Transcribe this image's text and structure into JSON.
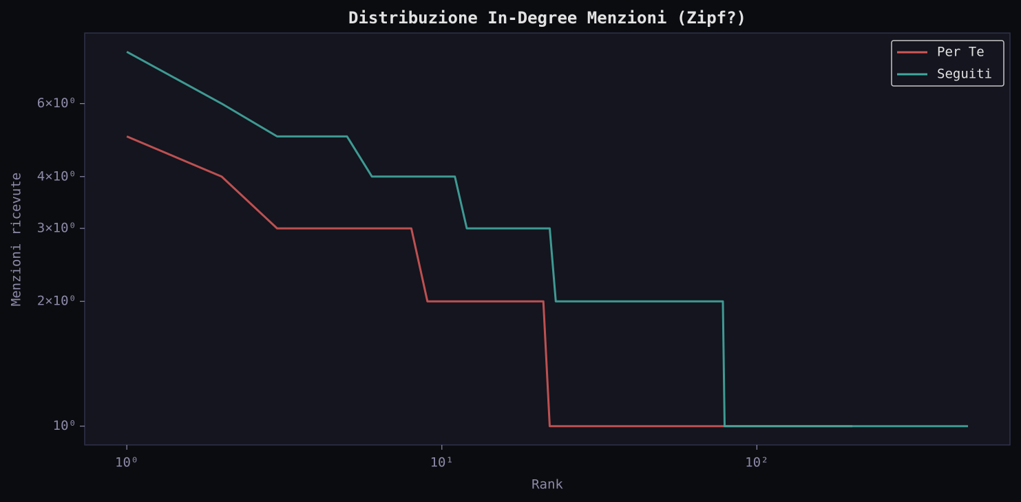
{
  "chart_data": {
    "type": "line",
    "title": "Distribuzione In-Degree Menzioni (Zipf?)",
    "xlabel": "Rank",
    "ylabel": "Menzioni ricevute",
    "xscale": "log",
    "yscale": "log",
    "grid": false,
    "legend": "upper right",
    "xlim": [
      0.735,
      636
    ],
    "ylim": [
      0.901,
      8.88
    ],
    "xticks": [
      {
        "value": 1,
        "label": "10⁰"
      },
      {
        "value": 10,
        "label": "10¹"
      },
      {
        "value": 100,
        "label": "10²"
      }
    ],
    "yticks": [
      {
        "value": 1,
        "label": "10⁰"
      },
      {
        "value": 2,
        "label": "2×10⁰"
      },
      {
        "value": 3,
        "label": "3×10⁰"
      },
      {
        "value": 4,
        "label": "4×10⁰"
      },
      {
        "value": 6,
        "label": "6×10⁰"
      }
    ],
    "series": [
      {
        "name": "Per Te",
        "color": "#d05757",
        "x": [
          1,
          2,
          3,
          8,
          9,
          21,
          22,
          201
        ],
        "values": [
          5,
          4,
          3,
          3,
          2,
          2,
          1,
          1
        ]
      },
      {
        "name": "Seguiti",
        "color": "#42a8a0",
        "x": [
          1,
          2,
          3,
          5,
          6,
          11,
          12,
          22,
          23,
          78,
          79,
          468
        ],
        "values": [
          8,
          6,
          5,
          5,
          4,
          4,
          3,
          3,
          2,
          2,
          1,
          1
        ]
      }
    ]
  }
}
